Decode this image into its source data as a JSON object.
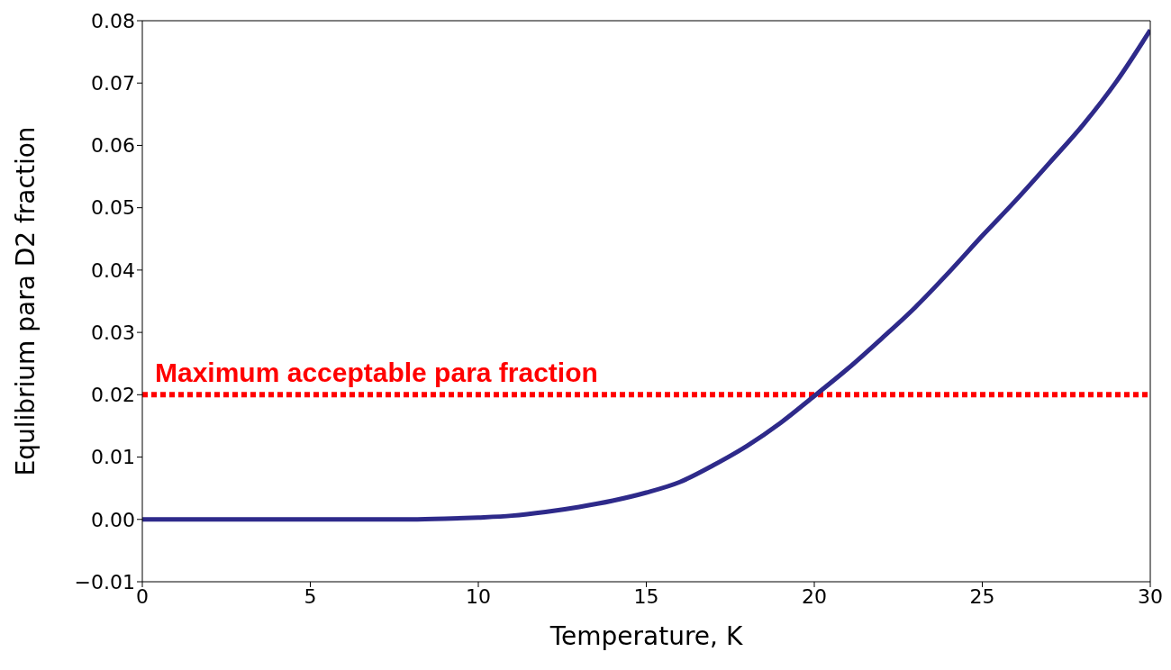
{
  "chart_data": {
    "type": "line",
    "xlabel": "Temperature, K",
    "ylabel": "Equlibrium para D2 fraction",
    "x": [
      0,
      2,
      4,
      6,
      8,
      9,
      10,
      11,
      12,
      13,
      14,
      15,
      16,
      17,
      18,
      19,
      20,
      21,
      22,
      23,
      24,
      25,
      26,
      27,
      28,
      29,
      30
    ],
    "series": [
      {
        "color": "#2e2a8a",
        "values": [
          0,
          0,
          0,
          0,
          0,
          0.0001,
          0.0003,
          0.0006,
          0.0012,
          0.002,
          0.003,
          0.0043,
          0.006,
          0.0087,
          0.0118,
          0.0155,
          0.0198,
          0.0242,
          0.029,
          0.034,
          0.0396,
          0.0455,
          0.0512,
          0.0572,
          0.0633,
          0.0703,
          0.0785
        ]
      }
    ],
    "xlim": [
      0,
      30
    ],
    "xticks": [
      0,
      5,
      10,
      15,
      20,
      25,
      30
    ],
    "ylim": [
      -0.01,
      0.08
    ],
    "yticks": [
      {
        "value": -0.01,
        "label": "−0.01"
      },
      {
        "value": 0,
        "label": "0.00"
      },
      {
        "value": 0.01,
        "label": "0.01"
      },
      {
        "value": 0.02,
        "label": "0.02"
      },
      {
        "value": 0.03,
        "label": "0.03"
      },
      {
        "value": 0.04,
        "label": "0.04"
      },
      {
        "value": 0.05,
        "label": "0.05"
      },
      {
        "value": 0.06,
        "label": "0.06"
      },
      {
        "value": 0.07,
        "label": "0.07"
      },
      {
        "value": 0.08,
        "label": "0.08"
      }
    ],
    "ref_lines": [
      {
        "axis": "y",
        "value": 0.02,
        "label": "Maximum acceptable para fraction",
        "color": "#ff0000",
        "line_style": "dotted"
      }
    ],
    "grid": false,
    "legend": false,
    "marker": "none",
    "line_style": "solid"
  }
}
